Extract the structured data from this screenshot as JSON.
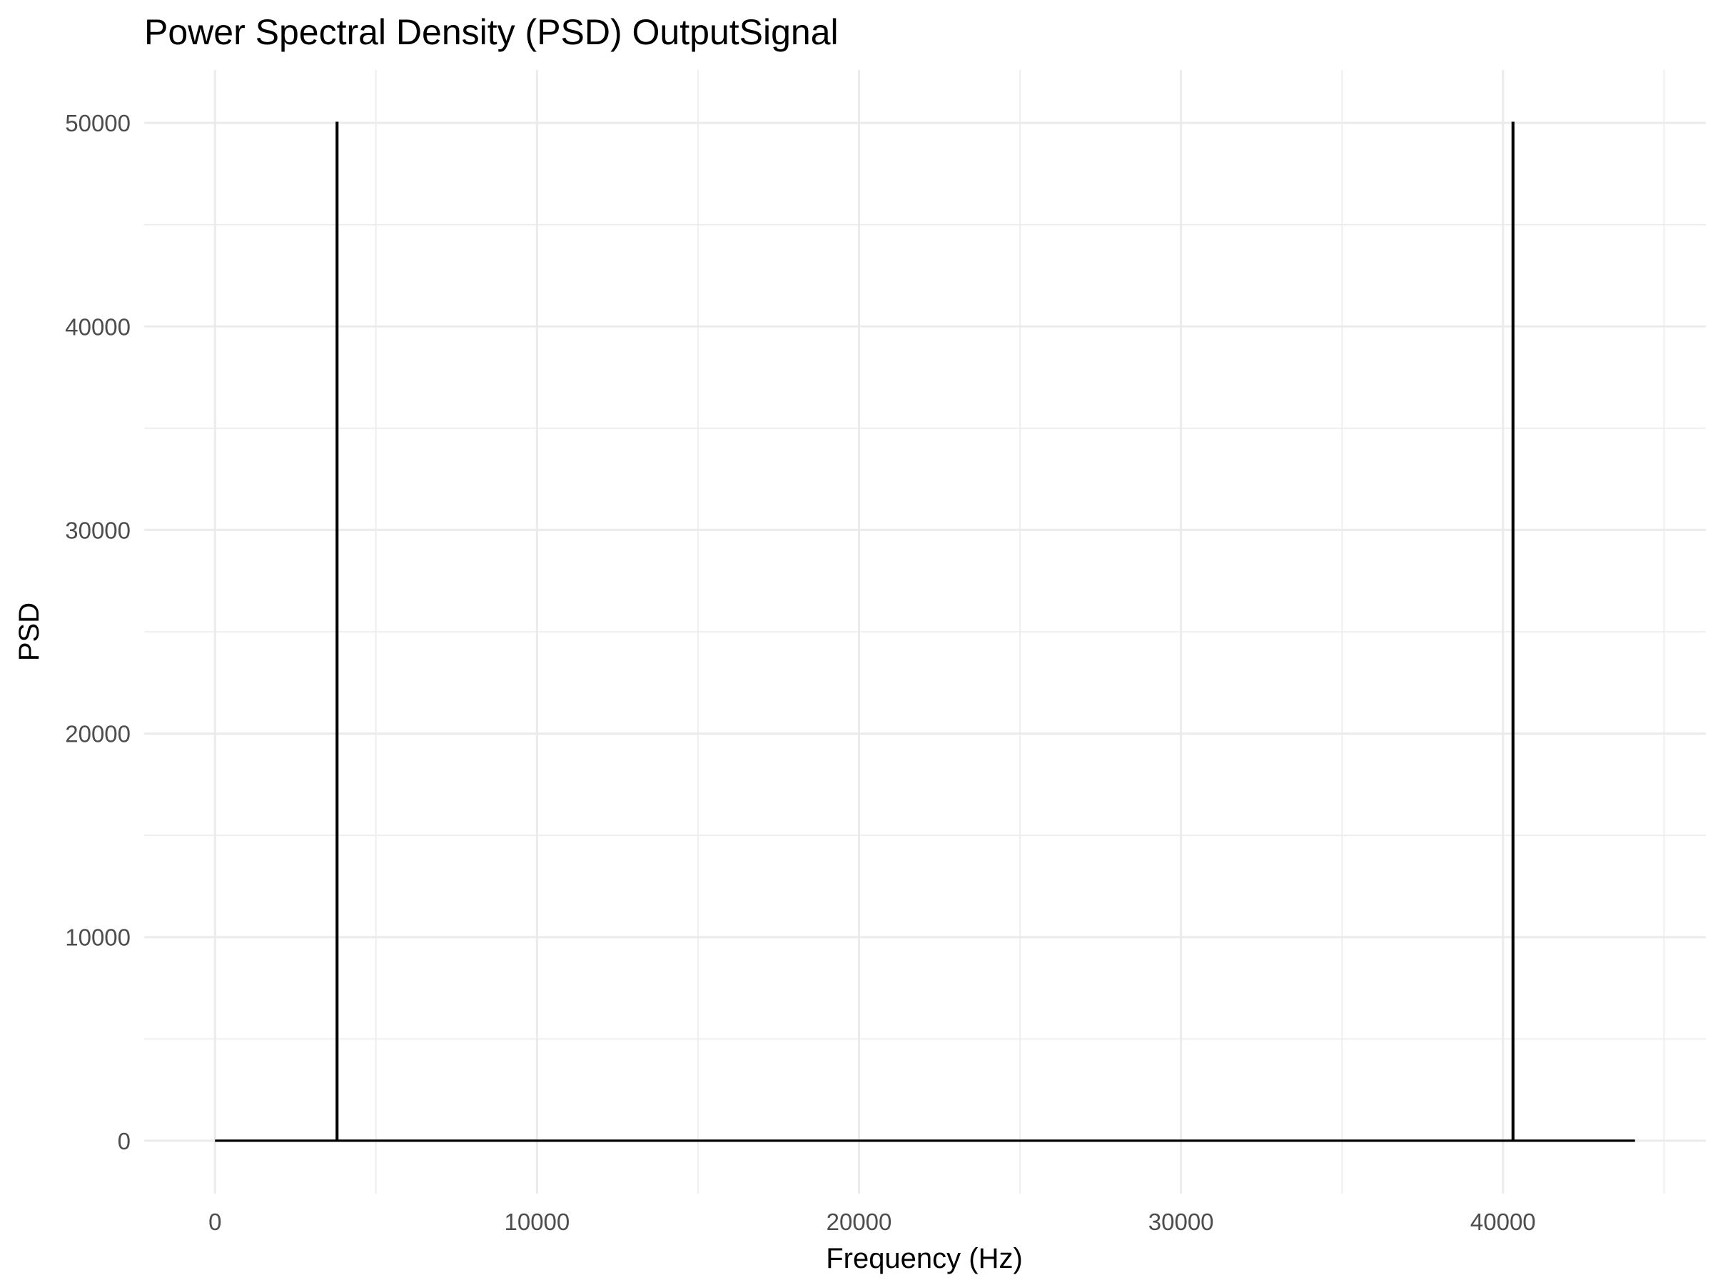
{
  "chart_data": {
    "type": "line",
    "title": "Power Spectral Density (PSD) OutputSignal",
    "xlabel": "Frequency (Hz)",
    "ylabel": "PSD",
    "xlim": [
      -2200,
      46300
    ],
    "ylim": [
      -2600,
      52600
    ],
    "x_ticks": [
      0,
      10000,
      20000,
      30000,
      40000
    ],
    "x_tick_labels": [
      "0",
      "10000",
      "20000",
      "30000",
      "40000"
    ],
    "x_minor_ticks": [
      5000,
      15000,
      25000,
      35000,
      45000
    ],
    "y_ticks": [
      0,
      10000,
      20000,
      30000,
      40000,
      50000
    ],
    "y_tick_labels": [
      "0",
      "10000",
      "20000",
      "30000",
      "40000",
      "50000"
    ],
    "y_minor_ticks": [
      5000,
      15000,
      25000,
      35000,
      45000
    ],
    "grid": true,
    "series": [
      {
        "x": [
          0,
          3780,
          3780,
          3800,
          3800,
          40300,
          40300,
          40320,
          40320,
          44100
        ],
        "y": [
          0,
          0,
          50000,
          50000,
          0,
          0,
          50000,
          50000,
          0,
          0
        ]
      }
    ]
  },
  "colors": {
    "line": "#000000",
    "grid": "#ebebeb",
    "tick_text": "#4d4d4d",
    "background": "#ffffff"
  }
}
